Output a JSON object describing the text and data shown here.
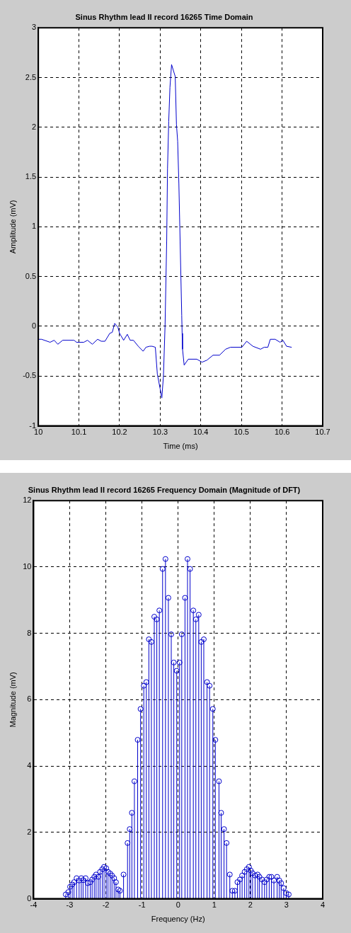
{
  "chart_data": [
    {
      "type": "line",
      "title": "Sinus Rhythm lead II record 16265 Time Domain",
      "xlabel": "Time (ms)",
      "ylabel": "Amplitude (mV)",
      "x": [
        10.0,
        10.008,
        10.029,
        10.039,
        10.048,
        10.06,
        10.088,
        10.094,
        10.112,
        10.121,
        10.133,
        10.146,
        10.155,
        10.164,
        10.176,
        10.182,
        10.188,
        10.196,
        10.2,
        10.21,
        10.219,
        10.226,
        10.234,
        10.246,
        10.258,
        10.265,
        10.274,
        10.28,
        10.288,
        10.293,
        10.3,
        10.304,
        10.308,
        10.312,
        10.316,
        10.318,
        10.321,
        10.324,
        10.328,
        10.337,
        10.34,
        10.343,
        10.346,
        10.349,
        10.351,
        10.353,
        10.354,
        10.355,
        10.359,
        10.369,
        10.39,
        10.403,
        10.415,
        10.43,
        10.446,
        10.461,
        10.473,
        10.501,
        10.513,
        10.528,
        10.547,
        10.556,
        10.565,
        10.571,
        10.583,
        10.595,
        10.602,
        10.611,
        10.623
      ],
      "values": [
        -0.13,
        -0.13,
        -0.16,
        -0.14,
        -0.18,
        -0.14,
        -0.14,
        -0.16,
        -0.16,
        -0.14,
        -0.18,
        -0.13,
        -0.15,
        -0.15,
        -0.07,
        -0.06,
        0.03,
        -0.01,
        -0.07,
        -0.14,
        -0.08,
        -0.14,
        -0.14,
        -0.2,
        -0.25,
        -0.21,
        -0.2,
        -0.2,
        -0.21,
        -0.48,
        -0.63,
        -0.72,
        -0.5,
        0.01,
        0.86,
        1.58,
        2.06,
        2.4,
        2.63,
        2.51,
        2.03,
        1.86,
        1.43,
        0.86,
        0.49,
        0.11,
        -0.07,
        -0.23,
        -0.39,
        -0.33,
        -0.33,
        -0.36,
        -0.34,
        -0.29,
        -0.29,
        -0.23,
        -0.21,
        -0.21,
        -0.15,
        -0.2,
        -0.23,
        -0.21,
        -0.21,
        -0.13,
        -0.13,
        -0.16,
        -0.14,
        -0.2,
        -0.21
      ],
      "color": "#0000cc",
      "xlim": [
        10,
        10.7
      ],
      "xticks": [
        10,
        10.1,
        10.2,
        10.3,
        10.4,
        10.5,
        10.6,
        10.7
      ],
      "ylim": [
        -1,
        3
      ],
      "yticks": [
        -1,
        -0.5,
        0,
        0.5,
        1,
        1.5,
        2,
        2.5,
        3
      ],
      "grid": true,
      "marker": "none",
      "line_style": "solid"
    },
    {
      "type": "lollipop",
      "title": "Sinus Rhythm lead II record 16265 Frequency Domain (Magnitude of DFT)",
      "xlabel": "Frequency (Hz)",
      "ylabel": "Magnitude (mV)",
      "x": [
        -3.11,
        -3.04,
        -2.99,
        -2.93,
        -2.88,
        -2.81,
        -2.74,
        -2.68,
        -2.63,
        -2.56,
        -2.5,
        -2.43,
        -2.38,
        -2.32,
        -2.27,
        -2.21,
        -2.16,
        -2.1,
        -2.05,
        -1.99,
        -1.94,
        -1.88,
        -1.83,
        -1.77,
        -1.72,
        -1.66,
        -1.61,
        -1.51,
        -1.4,
        -1.34,
        -1.28,
        -1.21,
        -1.12,
        -1.04,
        -0.95,
        -0.88,
        -0.81,
        -0.74,
        -0.66,
        -0.59,
        -0.52,
        -0.43,
        -0.35,
        -0.27,
        -0.19,
        -0.12,
        -0.04,
        0.04,
        0.1,
        0.19,
        0.26,
        0.33,
        0.42,
        0.49,
        0.57,
        0.64,
        0.71,
        0.8,
        0.87,
        0.96,
        1.03,
        1.13,
        1.19,
        1.27,
        1.34,
        1.43,
        1.5,
        1.57,
        1.64,
        1.71,
        1.77,
        1.84,
        1.9,
        1.96,
        2.01,
        2.06,
        2.13,
        2.2,
        2.25,
        2.32,
        2.39,
        2.45,
        2.52,
        2.58,
        2.65,
        2.74,
        2.8,
        2.85,
        2.92,
        2.99,
        3.06
      ],
      "values": [
        0.13,
        0.2,
        0.36,
        0.43,
        0.5,
        0.62,
        0.55,
        0.62,
        0.56,
        0.62,
        0.47,
        0.5,
        0.58,
        0.66,
        0.73,
        0.66,
        0.81,
        0.89,
        0.96,
        0.92,
        0.81,
        0.76,
        0.7,
        0.62,
        0.5,
        0.28,
        0.24,
        0.73,
        1.68,
        2.1,
        2.59,
        3.54,
        4.79,
        5.72,
        6.42,
        6.53,
        7.82,
        7.74,
        8.5,
        8.42,
        8.69,
        9.94,
        10.24,
        9.07,
        7.97,
        7.12,
        6.87,
        7.12,
        7.97,
        9.07,
        10.24,
        9.94,
        8.69,
        8.42,
        8.56,
        7.74,
        7.82,
        6.53,
        6.42,
        5.72,
        4.79,
        3.54,
        2.59,
        2.1,
        1.68,
        0.73,
        0.24,
        0.24,
        0.5,
        0.58,
        0.7,
        0.81,
        0.89,
        0.96,
        0.85,
        0.77,
        0.7,
        0.73,
        0.66,
        0.58,
        0.5,
        0.58,
        0.66,
        0.66,
        0.55,
        0.66,
        0.55,
        0.47,
        0.32,
        0.17,
        0.13
      ],
      "color": "#0000cc",
      "xlim": [
        -4,
        4
      ],
      "xticks": [
        -4,
        -3,
        -2,
        -1,
        0,
        1,
        2,
        3,
        4
      ],
      "ylim": [
        0,
        12
      ],
      "yticks": [
        0,
        2,
        4,
        6,
        8,
        10,
        12
      ],
      "grid": true,
      "marker": "circle",
      "line_style": "solid"
    }
  ]
}
